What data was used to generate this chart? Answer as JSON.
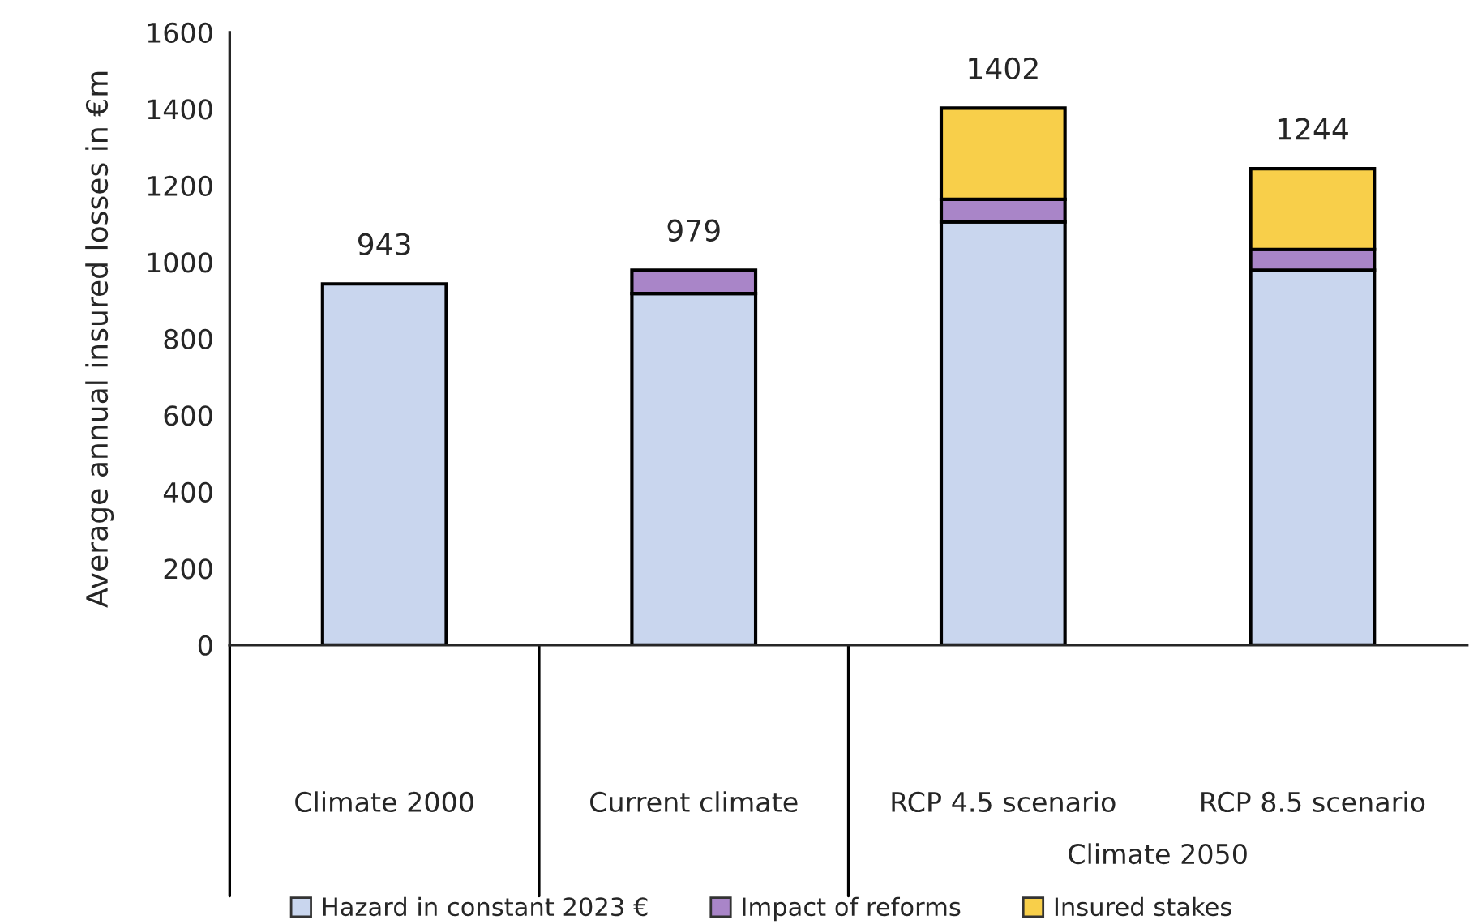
{
  "chart_data": {
    "type": "bar",
    "ylabel": "Average annual insured losses in €m",
    "categories": [
      "Climate 2000",
      "Current climate",
      "RCP 4.5 scenario",
      "RCP 8.5 scenario"
    ],
    "stacked": true,
    "series": [
      {
        "name": "Hazard in constant 2023 €",
        "color": "#c9d6ee",
        "values": [
          943,
          918,
          1105,
          979
        ]
      },
      {
        "name": "Impact of reforms",
        "color": "#a985c8",
        "values": [
          null,
          61,
          59,
          54
        ]
      },
      {
        "name": "Insured stakes",
        "color": "#f8cf4a",
        "values": [
          null,
          null,
          238,
          211
        ]
      }
    ],
    "totals": [
      "943",
      "979",
      "1402",
      "1244"
    ],
    "annotations": [
      "Climate 2050"
    ],
    "ylim": [
      0,
      1600
    ],
    "yticks": [
      0,
      200,
      400,
      600,
      800,
      1000,
      1200,
      1400,
      1600
    ],
    "grid": false,
    "legend": "bottom"
  }
}
